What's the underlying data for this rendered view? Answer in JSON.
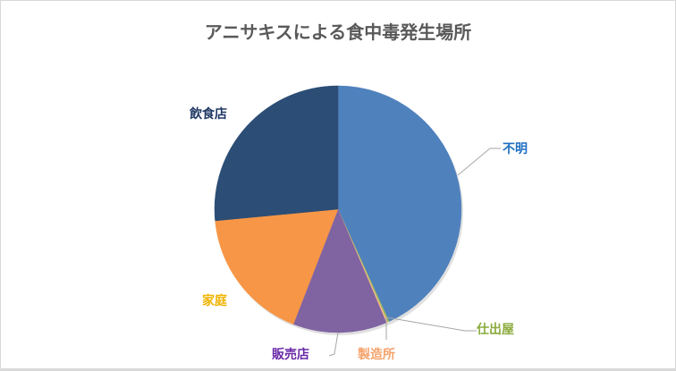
{
  "chart_data": {
    "type": "pie",
    "title": "アニサキスによる食中毒発生場所",
    "categories": [
      "不明",
      "仕出屋",
      "製造所",
      "販売店",
      "家庭",
      "飲食店"
    ],
    "values": [
      43.2,
      0.2,
      0.2,
      12.3,
      17.6,
      26.5
    ],
    "unit": "%",
    "colors": [
      "#4f81bd",
      "#9bbb59",
      "#f9b98c",
      "#8064a2",
      "#f79646",
      "#2c4d75"
    ],
    "label_colors": [
      "#1f6fc1",
      "#8aab3c",
      "#f6a26a",
      "#6a2aa8",
      "#f0b400",
      "#1f3864"
    ],
    "legend": "none (data labels with leader lines)"
  }
}
